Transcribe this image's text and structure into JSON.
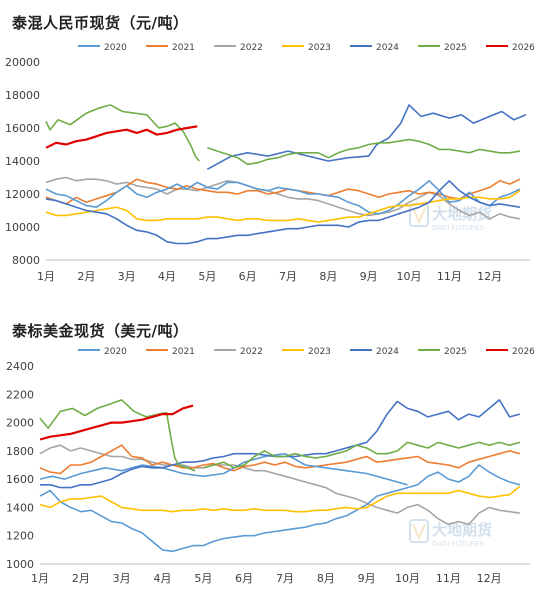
{
  "watermark": {
    "brand_cn": "大地期货",
    "brand_en": "DADI FUTURES"
  },
  "months": [
    "1月",
    "2月",
    "3月",
    "4月",
    "5月",
    "6月",
    "7月",
    "8月",
    "9月",
    "10月",
    "11月",
    "12月"
  ],
  "series_colors": {
    "2020": "#5b9bd5",
    "2021": "#ed7d31",
    "2022": "#a5a5a5",
    "2023": "#ffc000",
    "2024": "#4472c4",
    "2025": "#70ad47",
    "2026": "#e00000"
  },
  "chart_data": [
    {
      "type": "line",
      "title": "泰混人民币现货（元/吨）",
      "xlabel": "",
      "ylabel": "",
      "x_ticks": [
        "1月",
        "2月",
        "3月",
        "4月",
        "5月",
        "6月",
        "7月",
        "8月",
        "9月",
        "10月",
        "11月",
        "12月"
      ],
      "yticks": [
        "20000",
        "18000",
        "16000",
        "14000",
        "12000",
        "10000",
        "8000"
      ],
      "ylim": [
        8000,
        20000
      ],
      "grid": false,
      "legend": "top",
      "x_months": [
        1.0,
        1.25,
        1.5,
        1.75,
        2.0,
        2.25,
        2.5,
        2.75,
        3.0,
        3.25,
        3.5,
        3.75,
        4.0,
        4.25,
        4.5,
        4.75,
        5.0,
        5.25,
        5.5,
        5.75,
        6.0,
        6.25,
        6.5,
        6.75,
        7.0,
        7.25,
        7.5,
        7.75,
        8.0,
        8.25,
        8.5,
        8.75,
        9.0,
        9.25,
        9.5,
        9.75,
        10.0,
        10.25,
        10.5,
        10.75,
        11.0,
        11.25,
        11.5,
        11.75,
        12.0,
        12.25,
        12.5,
        12.75
      ],
      "series": [
        {
          "name": "2020",
          "values": [
            12300,
            12000,
            11900,
            11600,
            11300,
            11200,
            11600,
            12100,
            12500,
            12000,
            11800,
            12100,
            12300,
            12600,
            12300,
            12700,
            12400,
            12300,
            12700,
            12700,
            12500,
            12300,
            12200,
            12400,
            12300,
            12200,
            12000,
            12000,
            11900,
            11800,
            11500,
            11300,
            10900,
            10800,
            11000,
            11400,
            11900,
            12300,
            12800,
            12200,
            11500,
            11600,
            12100,
            11500,
            11300,
            11800,
            12000,
            12300
          ]
        },
        {
          "name": "2021",
          "values": [
            11800,
            11600,
            11400,
            11800,
            11500,
            11700,
            11900,
            12100,
            12500,
            12900,
            12700,
            12600,
            12400,
            12300,
            12500,
            12300,
            12200,
            12100,
            12100,
            12000,
            12200,
            12200,
            12000,
            12100,
            12300,
            12200,
            12100,
            12000,
            11900,
            12100,
            12300,
            12200,
            12000,
            11800,
            12000,
            12100,
            12200,
            12000,
            12100,
            12000,
            11800,
            11700,
            12000,
            12200,
            12400,
            12800,
            12600,
            12900
          ]
        },
        {
          "name": "2022",
          "values": [
            12700,
            12900,
            13000,
            12800,
            12900,
            12900,
            12800,
            12600,
            12700,
            12500,
            12400,
            12300,
            12000,
            12300,
            12300,
            12200,
            12400,
            12600,
            12800,
            12700,
            12500,
            12300,
            12200,
            12000,
            11800,
            11700,
            11700,
            11600,
            11400,
            11200,
            11000,
            10800,
            10700,
            10800,
            10900,
            11100,
            11500,
            11800,
            12100,
            11900,
            11400,
            11000,
            10700,
            10900,
            10500,
            10800,
            10600,
            10500
          ]
        },
        {
          "name": "2023",
          "values": [
            10900,
            10700,
            10700,
            10800,
            10900,
            11000,
            11100,
            11200,
            11000,
            10500,
            10400,
            10400,
            10500,
            10500,
            10500,
            10500,
            10600,
            10600,
            10500,
            10400,
            10500,
            10500,
            10400,
            10400,
            10400,
            10500,
            10400,
            10300,
            10400,
            10500,
            10600,
            10600,
            10800,
            11000,
            11200,
            11300,
            11300,
            11400,
            11500,
            11600,
            11700,
            11700,
            11800,
            11800,
            11700,
            11700,
            11800,
            12200
          ]
        },
        {
          "name": "2024",
          "values": [
            11700,
            11600,
            11400,
            11200,
            11000,
            10900,
            10800,
            10500,
            10100,
            9800,
            9700,
            9500,
            9100,
            9000,
            9000,
            9100,
            9300,
            9300,
            9400,
            9500,
            9500,
            9600,
            9700,
            9800,
            9900,
            9900,
            10000,
            10100,
            10100,
            10100,
            10000,
            10300,
            10400,
            10400,
            10600,
            10800,
            11000,
            11200,
            11500,
            12200,
            12800,
            12200,
            11800,
            11500,
            11300,
            11400,
            11300,
            11200
          ]
        },
        {
          "name": "2025",
          "values": [
            null,
            null,
            null,
            null,
            null,
            null,
            null,
            null,
            null,
            null,
            null,
            null,
            null,
            null,
            null,
            null,
            14800,
            14600,
            14400,
            14200,
            13800,
            13900,
            14100,
            14200,
            14400,
            14500,
            14500,
            14500,
            14200,
            14500,
            14700,
            14800,
            15000,
            15100,
            15100,
            15200,
            15300,
            15200,
            15000,
            14700,
            14700,
            14600,
            14500,
            14700,
            14600,
            14500,
            14500,
            14600
          ]
        },
        {
          "name": "2026",
          "values": [
            14800,
            15100,
            15000,
            15200,
            15300,
            15500,
            15700,
            15800,
            15900,
            15700,
            15900,
            15600,
            15700,
            15900,
            16000,
            16100,
            null,
            null,
            null,
            null,
            null,
            null,
            null,
            null,
            null,
            null,
            null,
            null,
            null,
            null,
            null,
            null,
            null,
            null,
            null,
            null,
            null,
            null,
            null,
            null,
            null,
            null,
            null,
            null,
            null,
            null,
            null,
            null
          ]
        }
      ],
      "extra_segments": [
        {
          "series": "2025",
          "x": [
            1.0,
            1.1,
            1.3,
            1.6,
            2.0,
            2.3,
            2.6,
            2.9,
            3.2,
            3.5,
            3.8,
            4.0,
            4.2,
            4.4,
            4.6,
            4.7,
            4.8
          ],
          "y": [
            16400,
            15900,
            16500,
            16200,
            16900,
            17200,
            17400,
            17000,
            16900,
            16800,
            16000,
            16100,
            16300,
            15800,
            14900,
            14300,
            14000
          ]
        },
        {
          "series": "2024",
          "x": [
            5.0,
            5.3,
            5.6,
            6.0,
            6.5,
            7.0,
            7.5,
            8.0,
            8.5,
            9.0,
            9.2,
            9.5,
            9.8,
            10.0,
            10.3,
            10.6,
            11.0,
            11.3,
            11.6,
            12.0,
            12.3,
            12.6,
            12.9
          ],
          "y": [
            13500,
            13900,
            14300,
            14500,
            14300,
            14600,
            14300,
            14000,
            14200,
            14300,
            15000,
            15400,
            16300,
            17400,
            16700,
            16900,
            16600,
            16800,
            16300,
            16700,
            17000,
            16500,
            16800
          ]
        }
      ]
    },
    {
      "type": "line",
      "title": "泰标美金现货（美元/吨）",
      "xlabel": "",
      "ylabel": "",
      "x_ticks": [
        "1月",
        "2月",
        "3月",
        "4月",
        "5月",
        "6月",
        "7月",
        "8月",
        "9月",
        "10月",
        "11月",
        "12月"
      ],
      "yticks": [
        "2400",
        "2200",
        "2000",
        "1800",
        "1600",
        "1400",
        "1200",
        "1000"
      ],
      "ylim": [
        1000,
        2400
      ],
      "grid": false,
      "legend": "top",
      "x_months": [
        1.0,
        1.25,
        1.5,
        1.75,
        2.0,
        2.25,
        2.5,
        2.75,
        3.0,
        3.25,
        3.5,
        3.75,
        4.0,
        4.25,
        4.5,
        4.75,
        5.0,
        5.25,
        5.5,
        5.75,
        6.0,
        6.25,
        6.5,
        6.75,
        7.0,
        7.25,
        7.5,
        7.75,
        8.0,
        8.25,
        8.5,
        8.75,
        9.0,
        9.25,
        9.5,
        9.75,
        10.0,
        10.25,
        10.5,
        10.75,
        11.0,
        11.25,
        11.5,
        11.75,
        12.0,
        12.25,
        12.5,
        12.75
      ],
      "series": [
        {
          "name": "2020",
          "values": [
            1480,
            1520,
            1440,
            1400,
            1370,
            1380,
            1340,
            1300,
            1290,
            1250,
            1220,
            1160,
            1100,
            1090,
            1110,
            1130,
            1130,
            1160,
            1180,
            1190,
            1200,
            1200,
            1220,
            1230,
            1240,
            1250,
            1260,
            1280,
            1290,
            1320,
            1340,
            1380,
            1420,
            1480,
            1500,
            1520,
            1540,
            1560,
            1620,
            1650,
            1600,
            1580,
            1620,
            1700,
            1650,
            1610,
            1580,
            1560
          ]
        },
        {
          "name": "2021",
          "values": [
            1680,
            1650,
            1640,
            1700,
            1700,
            1720,
            1760,
            1800,
            1840,
            1760,
            1750,
            1700,
            1720,
            1700,
            1680,
            1680,
            1700,
            1710,
            1680,
            1660,
            1690,
            1700,
            1720,
            1700,
            1720,
            1690,
            1680,
            1690,
            1700,
            1710,
            1720,
            1740,
            1760,
            1720,
            1730,
            1740,
            1750,
            1760,
            1720,
            1710,
            1700,
            1680,
            1720,
            1740,
            1760,
            1780,
            1800,
            1780
          ]
        },
        {
          "name": "2022",
          "values": [
            1780,
            1820,
            1840,
            1800,
            1820,
            1800,
            1780,
            1760,
            1760,
            1740,
            1740,
            1720,
            1700,
            1700,
            1700,
            1680,
            1680,
            1700,
            1700,
            1700,
            1680,
            1660,
            1660,
            1640,
            1620,
            1600,
            1580,
            1560,
            1540,
            1500,
            1480,
            1460,
            1430,
            1400,
            1380,
            1360,
            1400,
            1420,
            1380,
            1320,
            1280,
            1300,
            1280,
            1360,
            1400,
            1380,
            1370,
            1360
          ]
        },
        {
          "name": "2023",
          "values": [
            1420,
            1400,
            1440,
            1460,
            1460,
            1470,
            1480,
            1440,
            1400,
            1390,
            1380,
            1380,
            1380,
            1370,
            1380,
            1380,
            1390,
            1380,
            1390,
            1380,
            1380,
            1390,
            1380,
            1380,
            1380,
            1370,
            1370,
            1380,
            1380,
            1390,
            1400,
            1390,
            1400,
            1440,
            1480,
            1500,
            1500,
            1500,
            1500,
            1500,
            1500,
            1520,
            1500,
            1480,
            1470,
            1480,
            1490,
            1550
          ]
        },
        {
          "name": "2024",
          "values": [
            1560,
            1560,
            1540,
            1540,
            1560,
            1560,
            1580,
            1600,
            1640,
            1670,
            1690,
            1680,
            1680,
            1700,
            1720,
            1720,
            1730,
            1750,
            1760,
            1780,
            1780,
            1780,
            1770,
            1760,
            1760,
            1760,
            1770,
            1780,
            1780,
            1800,
            1820,
            1840,
            1860,
            1940,
            2060,
            2150,
            2100,
            2080,
            2040,
            2060,
            2080,
            2020,
            2060,
            2040,
            2100,
            2160,
            2040,
            2060
          ]
        },
        {
          "name": "2025",
          "values": [
            null,
            null,
            null,
            null,
            null,
            null,
            null,
            null,
            null,
            null,
            null,
            null,
            null,
            null,
            null,
            null,
            1680,
            1700,
            1720,
            1680,
            1700,
            1760,
            1800,
            1760,
            1760,
            1780,
            1760,
            1750,
            1760,
            1780,
            1800,
            1840,
            1820,
            1780,
            1780,
            1800,
            1860,
            1840,
            1820,
            1860,
            1840,
            1820,
            1840,
            1860,
            1840,
            1860,
            1840,
            1860
          ]
        },
        {
          "name": "2026",
          "values": [
            1880,
            1900,
            1910,
            1920,
            1940,
            1960,
            1980,
            2000,
            2000,
            2010,
            2020,
            2040,
            2060,
            2060,
            2100,
            2120,
            null,
            null,
            null,
            null,
            null,
            null,
            null,
            null,
            null,
            null,
            null,
            null,
            null,
            null,
            null,
            null,
            null,
            null,
            null,
            null,
            null,
            null,
            null,
            null,
            null,
            null,
            null,
            null,
            null,
            null,
            null,
            null
          ]
        }
      ],
      "extra_segments": [
        {
          "series": "2025",
          "x": [
            1.0,
            1.2,
            1.5,
            1.8,
            2.1,
            2.4,
            2.7,
            3.0,
            3.3,
            3.6,
            3.9,
            4.1,
            4.2,
            4.3,
            4.4,
            4.6,
            4.8
          ],
          "y": [
            2030,
            1960,
            2080,
            2100,
            2050,
            2100,
            2130,
            2160,
            2080,
            2040,
            2060,
            2070,
            1900,
            1750,
            1700,
            1680,
            1660
          ]
        },
        {
          "series": "2020",
          "x": [
            1.0,
            1.3,
            1.6,
            2.0,
            2.3,
            2.6,
            3.0,
            3.5,
            4.0,
            4.5,
            5.0,
            5.5,
            6.0,
            6.5,
            7.0,
            7.5,
            8.0,
            8.5,
            9.0,
            9.5,
            10.0
          ],
          "y": [
            1600,
            1620,
            1600,
            1640,
            1660,
            1680,
            1660,
            1700,
            1680,
            1640,
            1620,
            1640,
            1720,
            1760,
            1780,
            1700,
            1680,
            1660,
            1640,
            1600,
            1560
          ]
        }
      ]
    }
  ]
}
